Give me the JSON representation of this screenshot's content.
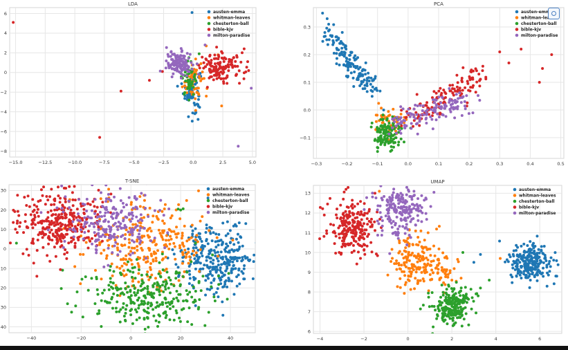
{
  "colors": {
    "austen-emma": "#1f77b4",
    "whitman-leaves": "#ff7f0e",
    "chesterton-ball": "#2ca02c",
    "bible-kjv": "#d62728",
    "milton-paradise": "#9467bd"
  },
  "icons": {
    "corner": "screen-capture-icon"
  },
  "chart_data": [
    {
      "type": "scatter",
      "title": "LDA",
      "xlim": [
        -15.5,
        5.3
      ],
      "ylim": [
        -8.6,
        6.6
      ],
      "xticks": [
        -15.0,
        -12.5,
        -10.0,
        -7.5,
        -5.0,
        -2.5,
        0.0,
        2.5,
        5.0
      ],
      "yticks": [
        -8,
        -6,
        -4,
        -2,
        0,
        2,
        4,
        6
      ],
      "tick_decimals_x": 1,
      "legend": "top-right",
      "grid": true,
      "series": [
        {
          "name": "austen-emma",
          "clusters": [
            [
              -0.1,
              -1.8,
              0.35,
              1.1,
              75
            ]
          ],
          "points": [
            [
              -0.1,
              6.1
            ],
            [
              -0.4,
              -4.5
            ],
            [
              0.2,
              -3.9
            ]
          ]
        },
        {
          "name": "whitman-leaves",
          "clusters": [
            [
              0.0,
              -0.8,
              0.45,
              1.0,
              55
            ]
          ],
          "points": [
            [
              2.4,
              -3.4
            ],
            [
              1.1,
              2.7
            ],
            [
              2.1,
              1.8
            ]
          ]
        },
        {
          "name": "chesterton-ball",
          "clusters": [
            [
              -0.4,
              -0.5,
              0.3,
              0.9,
              45
            ]
          ],
          "points": [
            [
              0.5,
              1.9
            ]
          ]
        },
        {
          "name": "bible-kjv",
          "clusters": [
            [
              2.5,
              0.5,
              0.95,
              0.7,
              130
            ]
          ],
          "points": [
            [
              -15.2,
              5.1
            ],
            [
              -7.9,
              -6.6
            ],
            [
              -6.1,
              -1.9
            ],
            [
              -3.7,
              -0.8
            ],
            [
              -2.6,
              0.1
            ],
            [
              4.3,
              2.4
            ],
            [
              4.6,
              1.1
            ],
            [
              3.9,
              -1.1
            ],
            [
              1.2,
              -1.5
            ]
          ]
        },
        {
          "name": "milton-paradise",
          "clusters": [
            [
              -1.2,
              0.9,
              0.55,
              0.6,
              125
            ]
          ],
          "points": [
            [
              3.8,
              -7.5
            ],
            [
              4.9,
              -1.6
            ],
            [
              1.0,
              2.8
            ]
          ]
        }
      ]
    },
    {
      "type": "scatter",
      "title": "PCA",
      "xlim": [
        -0.31,
        0.51
      ],
      "ylim": [
        -0.175,
        0.37
      ],
      "xticks": [
        -0.3,
        -0.2,
        -0.1,
        0.0,
        0.1,
        0.2,
        0.3,
        0.4,
        0.5
      ],
      "yticks": [
        -0.1,
        0.0,
        0.1,
        0.2,
        0.3
      ],
      "tick_decimals_x": 1,
      "legend": "top-right",
      "grid": true,
      "series": [
        {
          "name": "austen-emma",
          "line": [
            [
              -0.26,
              0.28
            ],
            [
              -0.12,
              0.07
            ],
            0.016,
            0.015,
            150
          ],
          "points": [
            [
              -0.28,
              0.35
            ],
            [
              -0.265,
              0.33
            ],
            [
              -0.26,
              0.31
            ],
            [
              -0.08,
              0.0
            ]
          ]
        },
        {
          "name": "whitman-leaves",
          "clusters": [
            [
              -0.06,
              -0.05,
              0.03,
              0.03,
              45
            ]
          ],
          "points": [
            [
              0.02,
              -0.02
            ]
          ]
        },
        {
          "name": "chesterton-ball",
          "clusters": [
            [
              -0.07,
              -0.09,
              0.024,
              0.03,
              130
            ]
          ],
          "points": [
            [
              -0.1,
              -0.15
            ]
          ]
        },
        {
          "name": "bible-kjv",
          "line": [
            [
              0.02,
              -0.03
            ],
            [
              0.23,
              0.13
            ],
            0.03,
            0.022,
            130
          ],
          "points": [
            [
              0.47,
              0.2
            ],
            [
              0.44,
              0.15
            ],
            [
              0.43,
              0.1
            ],
            [
              0.37,
              0.22
            ],
            [
              0.33,
              0.17
            ],
            [
              0.3,
              0.21
            ]
          ]
        },
        {
          "name": "milton-paradise",
          "line": [
            [
              -0.04,
              -0.06
            ],
            [
              0.18,
              0.04
            ],
            0.03,
            0.02,
            140
          ],
          "points": []
        }
      ]
    },
    {
      "type": "scatter",
      "title": "T-SNE",
      "xlim": [
        -49,
        50
      ],
      "ylim": [
        -43,
        33
      ],
      "xticks": [
        -40,
        -20,
        0,
        20,
        40
      ],
      "yticks": [
        -40,
        -30,
        -20,
        -10,
        0,
        10,
        20,
        30
      ],
      "tick_decimals_x": 0,
      "legend": "top-right",
      "grid": true,
      "series": [
        {
          "name": "austen-emma",
          "clusters": [
            [
              35,
              -5,
              7.5,
              9,
              300
            ]
          ],
          "points": []
        },
        {
          "name": "whitman-leaves",
          "clusters": [
            [
              6,
              3,
              12,
              11,
              290
            ]
          ],
          "points": []
        },
        {
          "name": "chesterton-ball",
          "clusters": [
            [
              6,
              -25,
              12,
              8,
              300
            ]
          ],
          "points": [
            [
              19,
              20.5
            ],
            [
              20,
              20
            ],
            [
              21,
              20.6
            ],
            [
              26,
              3
            ],
            [
              -46,
              3
            ]
          ]
        },
        {
          "name": "bible-kjv",
          "clusters": [
            [
              -33,
              12,
              7.5,
              9,
              200
            ],
            [
              -22,
              15,
              6,
              8,
              120
            ]
          ],
          "points": []
        },
        {
          "name": "milton-paradise",
          "clusters": [
            [
              -8,
              14,
              9,
              9,
              230
            ]
          ],
          "points": []
        }
      ]
    },
    {
      "type": "scatter",
      "title": "UMAP",
      "xlim": [
        -4.3,
        7.0
      ],
      "ylim": [
        5.9,
        13.4
      ],
      "xticks": [
        -4,
        -2,
        0,
        2,
        4,
        6
      ],
      "yticks": [
        6,
        7,
        8,
        9,
        10,
        11,
        12,
        13
      ],
      "tick_decimals_x": 0,
      "legend": "top-right",
      "grid": true,
      "series": [
        {
          "name": "austen-emma",
          "clusters": [
            [
              5.6,
              9.5,
              0.5,
              0.5,
              230
            ]
          ],
          "points": [
            [
              3.3,
              9.9
            ],
            [
              3.0,
              9.5
            ]
          ]
        },
        {
          "name": "whitman-leaves",
          "clusters": [
            [
              0.3,
              9.6,
              0.55,
              0.75,
              170
            ],
            [
              1.5,
              9.0,
              0.4,
              0.5,
              40
            ]
          ],
          "points": [
            [
              4.2,
              9.7
            ],
            [
              -1.3,
              13.1
            ]
          ]
        },
        {
          "name": "chesterton-ball",
          "clusters": [
            [
              2.0,
              7.3,
              0.45,
              0.45,
              230
            ]
          ],
          "points": [
            [
              3.3,
              8.2
            ],
            [
              3.7,
              8.6
            ],
            [
              2.5,
              10.0
            ],
            [
              3.1,
              7.9
            ]
          ]
        },
        {
          "name": "bible-kjv",
          "clusters": [
            [
              -2.6,
              11.3,
              0.6,
              0.7,
              220
            ]
          ],
          "points": [
            [
              -1.5,
              13.0
            ],
            [
              -3.7,
              11.1
            ]
          ]
        },
        {
          "name": "milton-paradise",
          "clusters": [
            [
              -0.3,
              12.1,
              0.6,
              0.7,
              200
            ]
          ],
          "points": []
        }
      ]
    }
  ]
}
